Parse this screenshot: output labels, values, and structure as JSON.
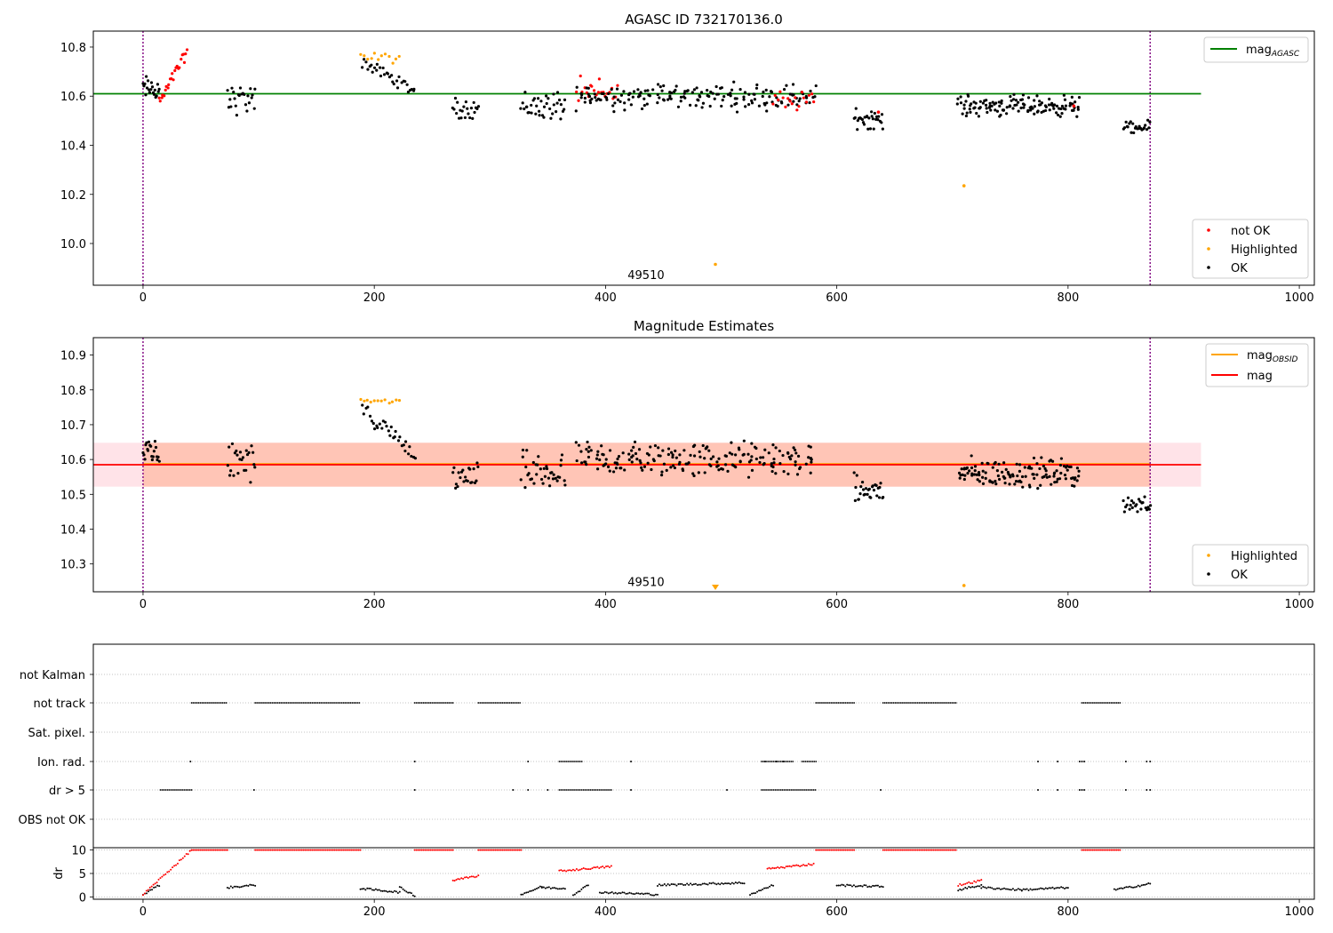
{
  "chart_data": [
    {
      "type": "scatter",
      "title": "AGASC ID 732170136.0",
      "xlim": [
        -43,
        1013
      ],
      "ylim": [
        9.83,
        10.865
      ],
      "xticks": [
        "0",
        "200",
        "400",
        "600",
        "800",
        "1000"
      ],
      "yticks": [
        "10.0",
        "10.2",
        "10.4",
        "10.6",
        "10.8"
      ],
      "hline": {
        "label": "mag",
        "subscript": "AGASC",
        "value": 10.61,
        "x_end": 915,
        "color": "#008000"
      },
      "vlines": [
        0,
        871
      ],
      "annotation": {
        "text": "49510",
        "x": 435,
        "y": 9.855
      },
      "legend_lines": [
        {
          "label": "mag",
          "subscript": "AGASC",
          "color": "#008000"
        }
      ],
      "legend_points": [
        {
          "label": "not OK",
          "color": "#ff0000"
        },
        {
          "label": "Highlighted",
          "color": "#ffa500"
        },
        {
          "label": "OK",
          "color": "#000000"
        }
      ],
      "segments": [
        {
          "x0": 0,
          "x1": 14,
          "mean": 10.63,
          "spread": 0.05,
          "n": 20,
          "color": "#000000"
        },
        {
          "x0": 14,
          "x1": 38,
          "y0": 10.57,
          "y1": 10.78,
          "n": 24,
          "color": "#ff0000"
        },
        {
          "x0": 73,
          "x1": 97,
          "mean": 10.59,
          "spread": 0.06,
          "n": 24,
          "color": "#000000"
        },
        {
          "x0": 188,
          "x1": 222,
          "mean": 10.755,
          "spread": 0.02,
          "n": 12,
          "color": "#ffa500"
        },
        {
          "x0": 190,
          "x1": 235,
          "y0": 10.74,
          "y1": 10.62,
          "n": 32,
          "color": "#000000"
        },
        {
          "x0": 268,
          "x1": 290,
          "mean": 10.55,
          "spread": 0.04,
          "n": 22,
          "color": "#000000"
        },
        {
          "x0": 327,
          "x1": 365,
          "mean": 10.56,
          "spread": 0.06,
          "n": 38,
          "color": "#000000"
        },
        {
          "x0": 375,
          "x1": 410,
          "mean": 10.61,
          "spread": 0.06,
          "n": 22,
          "color": "#ff0000"
        },
        {
          "x0": 375,
          "x1": 580,
          "mean": 10.6,
          "spread": 0.05,
          "n": 180,
          "color": "#000000"
        },
        {
          "x0": 545,
          "x1": 580,
          "mean": 10.58,
          "spread": 0.04,
          "n": 18,
          "color": "#ff0000"
        },
        {
          "x0": 615,
          "x1": 640,
          "mean": 10.51,
          "spread": 0.04,
          "n": 30,
          "color": "#000000"
        },
        {
          "x0": 705,
          "x1": 810,
          "mean": 10.56,
          "spread": 0.04,
          "n": 130,
          "color": "#000000"
        },
        {
          "x0": 848,
          "x1": 871,
          "mean": 10.47,
          "spread": 0.025,
          "n": 24,
          "color": "#000000"
        }
      ],
      "points": [
        {
          "x": 710,
          "y": 10.235,
          "color": "#ffa500"
        },
        {
          "x": 495,
          "y": 9.915,
          "color": "#ffa500"
        },
        {
          "x": 636,
          "y": 10.535,
          "color": "#ff0000"
        },
        {
          "x": 805,
          "y": 10.56,
          "color": "#ff0000"
        }
      ]
    },
    {
      "type": "scatter",
      "title": "Magnitude Estimates",
      "xlim": [
        -43,
        1013
      ],
      "ylim": [
        10.22,
        10.95
      ],
      "xticks": [
        "0",
        "200",
        "400",
        "600",
        "800",
        "1000"
      ],
      "yticks": [
        "10.3",
        "10.4",
        "10.5",
        "10.6",
        "10.7",
        "10.8",
        "10.9"
      ],
      "hline": {
        "label": "mag",
        "value": 10.585,
        "x_end": 915,
        "color": "#ff0000"
      },
      "band_outer": {
        "y0": 10.522,
        "y1": 10.648,
        "x_end": 915
      },
      "band_obsid": {
        "y0": 10.522,
        "y1": 10.648,
        "x_end": 871,
        "mean": 10.587
      },
      "vlines": [
        0,
        871
      ],
      "annotation": {
        "text": "49510",
        "x": 435,
        "y": 10.232
      },
      "legend_lines": [
        {
          "label": "mag",
          "subscript": "OBSID",
          "color": "#ffa500"
        },
        {
          "label": "mag",
          "color": "#ff0000"
        }
      ],
      "legend_points": [
        {
          "label": "Highlighted",
          "color": "#ffa500"
        },
        {
          "label": "OK",
          "color": "#000000"
        }
      ],
      "segments": [
        {
          "x0": 0,
          "x1": 14,
          "mean": 10.63,
          "spread": 0.05,
          "n": 20,
          "color": "#000000"
        },
        {
          "x0": 73,
          "x1": 97,
          "mean": 10.59,
          "spread": 0.06,
          "n": 24,
          "color": "#000000"
        },
        {
          "x0": 188,
          "x1": 222,
          "mean": 10.765,
          "spread": 0.01,
          "n": 12,
          "color": "#ffa500"
        },
        {
          "x0": 190,
          "x1": 235,
          "y0": 10.74,
          "y1": 10.62,
          "n": 32,
          "color": "#000000"
        },
        {
          "x0": 268,
          "x1": 290,
          "mean": 10.55,
          "spread": 0.04,
          "n": 22,
          "color": "#000000"
        },
        {
          "x0": 327,
          "x1": 365,
          "mean": 10.56,
          "spread": 0.06,
          "n": 38,
          "color": "#000000"
        },
        {
          "x0": 375,
          "x1": 580,
          "mean": 10.6,
          "spread": 0.05,
          "n": 190,
          "color": "#000000"
        },
        {
          "x0": 615,
          "x1": 640,
          "mean": 10.51,
          "spread": 0.04,
          "n": 30,
          "color": "#000000"
        },
        {
          "x0": 705,
          "x1": 810,
          "mean": 10.56,
          "spread": 0.04,
          "n": 130,
          "color": "#000000"
        },
        {
          "x0": 848,
          "x1": 871,
          "mean": 10.47,
          "spread": 0.025,
          "n": 24,
          "color": "#000000"
        }
      ],
      "points": [
        {
          "x": 710,
          "y": 10.238,
          "color": "#ffa500"
        }
      ],
      "markers": [
        {
          "x": 495,
          "y": 10.225,
          "color": "#ffa500"
        }
      ]
    },
    {
      "type": "scatter",
      "ylabel": "dr",
      "xlim": [
        -43,
        1013
      ],
      "xticks": [
        "0",
        "200",
        "400",
        "600",
        "800",
        "1000"
      ],
      "flag_rows": [
        "not Kalman",
        "not track",
        "Sat. pixel.",
        "Ion. rad.",
        "dr > 5",
        "OBS not OK"
      ],
      "flag_ranges": {
        "not track": [
          [
            42,
            73
          ],
          [
            97,
            188
          ],
          [
            235,
            268
          ],
          [
            290,
            327
          ],
          [
            582,
            615
          ],
          [
            640,
            703
          ],
          [
            812,
            845
          ]
        ],
        "Ion. rad.": [
          [
            360,
            380
          ],
          [
            535,
            562
          ],
          [
            570,
            582
          ]
        ],
        "dr > 5": [
          [
            15,
            42
          ],
          [
            360,
            405
          ],
          [
            535,
            582
          ]
        ]
      },
      "flag_points": {
        "Ion. rad.": [
          41,
          235,
          333,
          422,
          538,
          548,
          554,
          774,
          791,
          810,
          812,
          814,
          850,
          868,
          871
        ],
        "dr > 5": [
          96,
          235,
          320,
          333,
          350,
          422,
          505,
          638,
          774,
          791,
          810,
          812,
          814,
          850,
          868,
          871
        ]
      },
      "dr_ylim": [
        -0.5,
        10.5
      ],
      "dr_yticks": [
        "0",
        "5",
        "10"
      ],
      "dr_ok_segments": [
        {
          "x0": 0,
          "x1": 14,
          "y0": 0.5,
          "y1": 2.5
        },
        {
          "x0": 73,
          "x1": 97,
          "y0": 2,
          "y1": 2.5
        },
        {
          "x0": 188,
          "x1": 222,
          "y0": 1.8,
          "y1": 1.0
        },
        {
          "x0": 222,
          "x1": 235,
          "y0": 2.0,
          "y1": 0.3
        },
        {
          "x0": 327,
          "x1": 345,
          "y0": 0.5,
          "y1": 2.2
        },
        {
          "x0": 345,
          "x1": 365,
          "y0": 2.0,
          "y1": 1.8
        },
        {
          "x0": 372,
          "x1": 385,
          "y0": 0.5,
          "y1": 2.5
        },
        {
          "x0": 395,
          "x1": 445,
          "y0": 1.0,
          "y1": 0.5
        },
        {
          "x0": 445,
          "x1": 520,
          "y0": 2.5,
          "y1": 3.0
        },
        {
          "x0": 525,
          "x1": 545,
          "y0": 0.5,
          "y1": 2.5
        },
        {
          "x0": 600,
          "x1": 640,
          "y0": 2.5,
          "y1": 2.2
        },
        {
          "x0": 705,
          "x1": 725,
          "y0": 1.5,
          "y1": 2.5
        },
        {
          "x0": 725,
          "x1": 760,
          "y0": 2.0,
          "y1": 1.5
        },
        {
          "x0": 760,
          "x1": 800,
          "y0": 1.5,
          "y1": 2.0
        },
        {
          "x0": 840,
          "x1": 871,
          "y0": 1.5,
          "y1": 2.8
        }
      ],
      "dr_red_segments": [
        {
          "x0": 0,
          "x1": 42,
          "y0": 0.5,
          "y1": 10
        },
        {
          "x0": 42,
          "x1": 73,
          "y0": 10,
          "y1": 10
        },
        {
          "x0": 97,
          "x1": 188,
          "y0": 10,
          "y1": 10
        },
        {
          "x0": 235,
          "x1": 268,
          "y0": 10,
          "y1": 10
        },
        {
          "x0": 268,
          "x1": 290,
          "y0": 3.5,
          "y1": 4.5
        },
        {
          "x0": 290,
          "x1": 327,
          "y0": 10,
          "y1": 10
        },
        {
          "x0": 360,
          "x1": 405,
          "y0": 5.5,
          "y1": 6.5
        },
        {
          "x0": 540,
          "x1": 580,
          "y0": 6.0,
          "y1": 7.0
        },
        {
          "x0": 582,
          "x1": 615,
          "y0": 10,
          "y1": 10
        },
        {
          "x0": 640,
          "x1": 703,
          "y0": 10,
          "y1": 10
        },
        {
          "x0": 705,
          "x1": 725,
          "y0": 2.5,
          "y1": 3.5
        },
        {
          "x0": 812,
          "x1": 845,
          "y0": 10,
          "y1": 10
        }
      ]
    }
  ]
}
